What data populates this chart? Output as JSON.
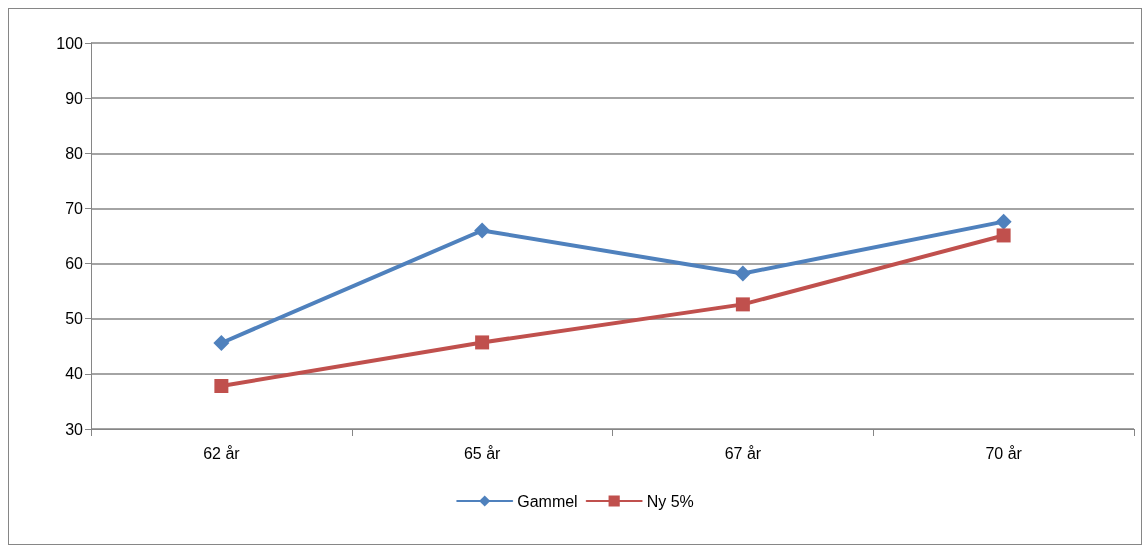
{
  "chart_data": {
    "type": "line",
    "categories": [
      "62 år",
      "65 år",
      "67 år",
      "70 år"
    ],
    "series": [
      {
        "name": "Gammel",
        "color": "#4f81bd",
        "marker": "diamond",
        "values": [
          45.6,
          66,
          58.2,
          67.6
        ]
      },
      {
        "name": "Ny 5%",
        "color": "#c0504d",
        "marker": "square",
        "values": [
          37.8,
          45.7,
          52.6,
          65.1
        ]
      }
    ],
    "ylim": [
      30,
      100
    ],
    "yticks": [
      30,
      40,
      50,
      60,
      70,
      80,
      90,
      100
    ],
    "grid": "y",
    "legend": "bottom",
    "line_style": "solid"
  }
}
